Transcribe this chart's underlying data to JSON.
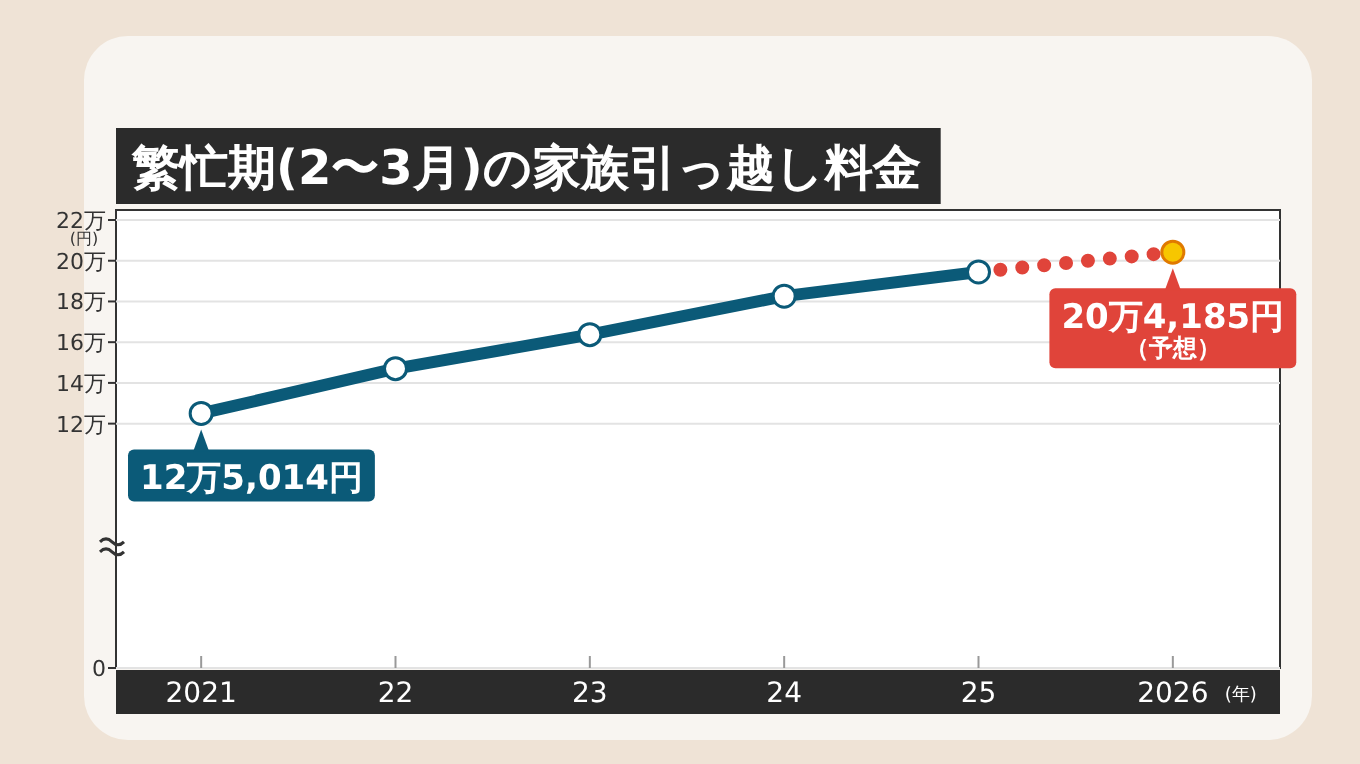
{
  "chart_data": {
    "type": "line",
    "title": "繁忙期(2〜3月)の家族引っ越し料金",
    "ylabel": "(円)",
    "xlabel": "(年)",
    "categories": [
      "2021",
      "22",
      "23",
      "24",
      "25",
      "2026"
    ],
    "series": [
      {
        "color": "#e0443a",
        "line_style": "dotted",
        "colors": [
          null,
          null,
          null,
          null,
          null,
          "#f7c600"
        ],
        "values": [
          null,
          null,
          null,
          null,
          19.45,
          20.4185
        ]
      },
      {
        "color": "#0b5a78",
        "line_style": "solid",
        "values": [
          12.5014,
          14.7,
          16.37,
          18.26,
          19.45,
          null
        ]
      }
    ],
    "marker": "circle",
    "ylim": [
      0,
      22
    ],
    "yticks": [
      0,
      {
        "value": 12,
        "label": "12万"
      },
      {
        "value": 14,
        "label": "14万"
      },
      {
        "value": 16,
        "label": "16万"
      },
      {
        "value": 18,
        "label": "18万"
      },
      {
        "value": 20,
        "label": "20万"
      },
      {
        "value": 22,
        "label": "22万"
      }
    ],
    "grid": "y",
    "annotations": [
      {
        "text": "12万5,014円",
        "x": "2021",
        "y": 12.5014
      },
      {
        "text": "20万4,185円",
        "x": "2026",
        "y": 20.4185
      },
      "（予想）"
    ]
  }
}
